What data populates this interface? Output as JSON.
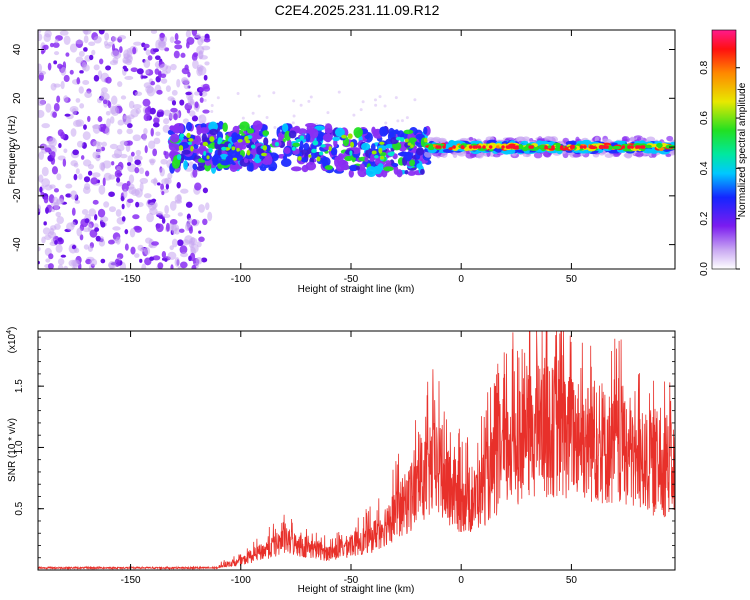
{
  "title": "C2E4.2025.231.11.09.R12",
  "chart_data": [
    {
      "type": "heatmap",
      "xlabel": "Height of straight line (km)",
      "ylabel": "Frequency (Hz)",
      "xlim": [
        -192,
        97
      ],
      "ylim": [
        -50,
        48
      ],
      "xticks": [
        -150,
        -100,
        -50,
        0,
        50
      ],
      "yticks": [
        -40,
        -20,
        0,
        20,
        40
      ],
      "colorbar": {
        "label": "Normalized spectral amplitude",
        "range": [
          0.0,
          0.95
        ],
        "ticks": [
          "0.0",
          "0.2",
          "0.4",
          "0.6",
          "0.8"
        ],
        "colormap": "rainbow (white-violet-blue-cyan-green-yellow-red-magenta)"
      },
      "regions": [
        {
          "x_range": [
            -192,
            -115
          ],
          "freq_range": [
            -50,
            48
          ],
          "amplitude": "low",
          "description_freq_center": 0
        },
        {
          "x_range": [
            -132,
            -15
          ],
          "freq_range": [
            -12,
            10
          ],
          "amplitude": "0.2-0.5",
          "description_freq_center": 0
        },
        {
          "x_range": [
            -15,
            97
          ],
          "freq_range": [
            -3,
            3
          ],
          "amplitude": "0.6-0.95",
          "description_freq_center": 0
        }
      ]
    },
    {
      "type": "line",
      "xlabel": "Height of straight line (km)",
      "ylabel": "SNR (10 * v/v)",
      "y_multiplier": "(x10^4)",
      "xlim": [
        -192,
        97
      ],
      "ylim": [
        0,
        1.95
      ],
      "xticks": [
        -150,
        -100,
        -50,
        0,
        50
      ],
      "yticks": [
        0.5,
        1.0,
        1.5
      ],
      "color": "#e8302a",
      "envelope": [
        {
          "x": -192,
          "y": 0.02
        },
        {
          "x": -115,
          "y": 0.02
        },
        {
          "x": -100,
          "y": 0.1
        },
        {
          "x": -80,
          "y": 0.35
        },
        {
          "x": -60,
          "y": 0.2
        },
        {
          "x": -40,
          "y": 0.4
        },
        {
          "x": -25,
          "y": 0.8
        },
        {
          "x": -12,
          "y": 1.25
        },
        {
          "x": -5,
          "y": 0.9
        },
        {
          "x": 5,
          "y": 0.8
        },
        {
          "x": 15,
          "y": 1.2
        },
        {
          "x": 25,
          "y": 1.5
        },
        {
          "x": 35,
          "y": 1.7
        },
        {
          "x": 50,
          "y": 1.6
        },
        {
          "x": 65,
          "y": 1.5
        },
        {
          "x": 80,
          "y": 1.3
        },
        {
          "x": 97,
          "y": 1.2
        }
      ]
    }
  ]
}
